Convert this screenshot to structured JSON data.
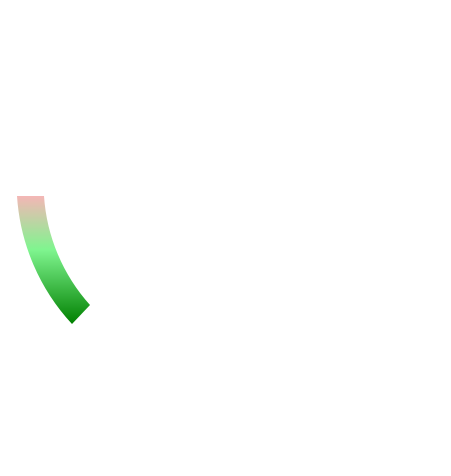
{
  "arc_segment": {
    "gradient_colors": [
      "#f4b6b6",
      "#7ff58f",
      "#008000"
    ]
  }
}
